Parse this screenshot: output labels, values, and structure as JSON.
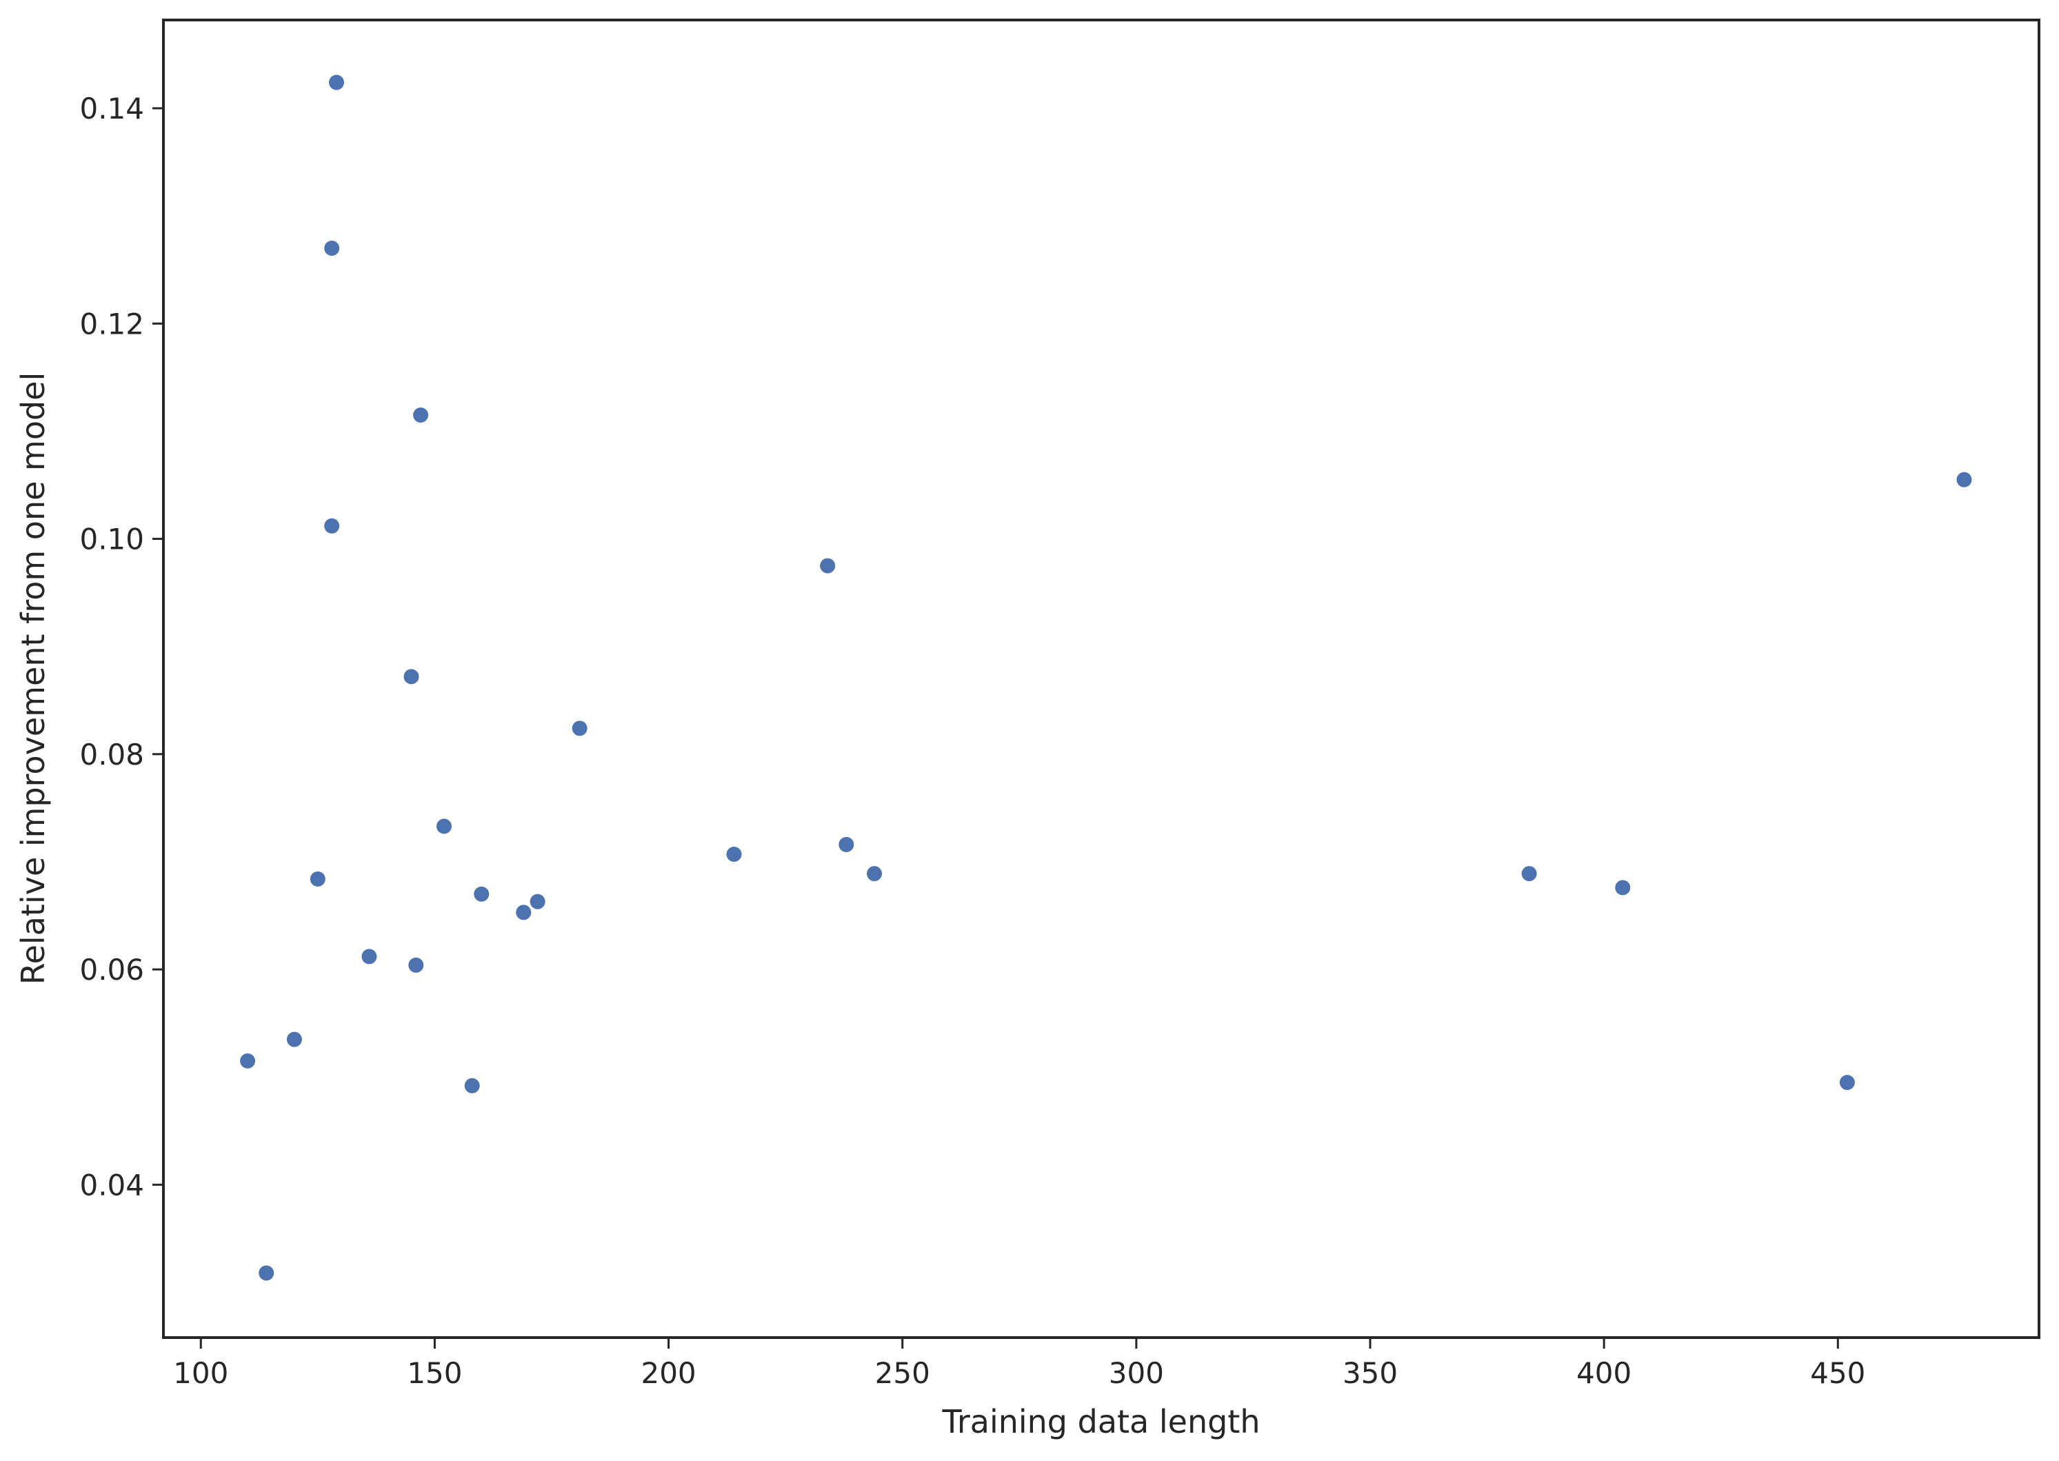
{
  "chart_data": {
    "type": "scatter",
    "title": "",
    "xlabel": "Training data length",
    "ylabel": "Relative improvement from one model",
    "xlim": [
      92,
      493
    ],
    "ylim": [
      0.0258,
      0.1482
    ],
    "xticks": [
      100,
      150,
      200,
      250,
      300,
      350,
      400,
      450
    ],
    "xtick_labels": [
      "100",
      "150",
      "200",
      "250",
      "300",
      "350",
      "400",
      "450"
    ],
    "yticks": [
      0.04,
      0.06,
      0.08,
      0.1,
      0.12,
      0.14
    ],
    "ytick_labels": [
      "0.04",
      "0.06",
      "0.08",
      "0.10",
      "0.12",
      "0.14"
    ],
    "grid": false,
    "legend": false,
    "marker_color": "#4c72b0",
    "series": [
      {
        "points": [
          {
            "x": 110,
            "y": 0.0515
          },
          {
            "x": 114,
            "y": 0.0318
          },
          {
            "x": 120,
            "y": 0.0535
          },
          {
            "x": 125,
            "y": 0.0684
          },
          {
            "x": 128,
            "y": 0.127
          },
          {
            "x": 128,
            "y": 0.1012
          },
          {
            "x": 129,
            "y": 0.1424
          },
          {
            "x": 136,
            "y": 0.0612
          },
          {
            "x": 145,
            "y": 0.0872
          },
          {
            "x": 146,
            "y": 0.0604
          },
          {
            "x": 147,
            "y": 0.1115
          },
          {
            "x": 152,
            "y": 0.0733
          },
          {
            "x": 158,
            "y": 0.0492
          },
          {
            "x": 160,
            "y": 0.067
          },
          {
            "x": 169,
            "y": 0.0653
          },
          {
            "x": 172,
            "y": 0.0663
          },
          {
            "x": 181,
            "y": 0.0824
          },
          {
            "x": 214,
            "y": 0.0707
          },
          {
            "x": 234,
            "y": 0.0975
          },
          {
            "x": 238,
            "y": 0.0716
          },
          {
            "x": 244,
            "y": 0.0689
          },
          {
            "x": 384,
            "y": 0.0689
          },
          {
            "x": 404,
            "y": 0.0676
          },
          {
            "x": 452,
            "y": 0.0495
          },
          {
            "x": 477,
            "y": 0.1055
          }
        ]
      }
    ]
  }
}
